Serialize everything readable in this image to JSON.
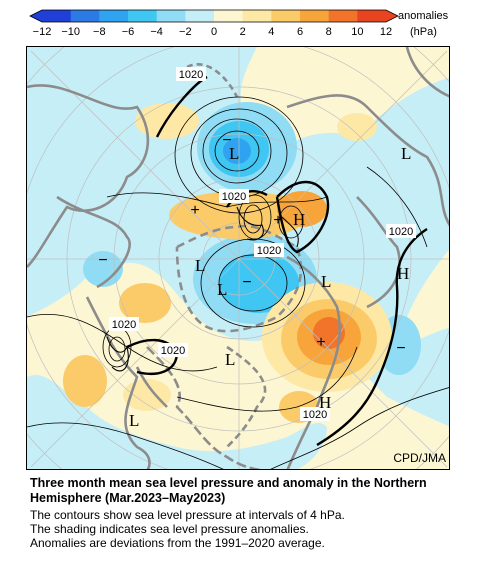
{
  "colorbar": {
    "ticks": [
      "−12",
      "−10",
      "−8",
      "−6",
      "−4",
      "−2",
      "0",
      "2",
      "4",
      "6",
      "8",
      "10",
      "12"
    ],
    "units_line1": "anomalies",
    "units_line2": "(hPa)",
    "colors": [
      "#1f3fd6",
      "#2b7ae6",
      "#2fa3f0",
      "#3fc6f3",
      "#8fdcf4",
      "#c6eef6",
      "#fdf6d2",
      "#fde8a6",
      "#fbcb6a",
      "#f7a53a",
      "#f2742a",
      "#e8441f"
    ]
  },
  "map": {
    "contour_labels": [
      "1020",
      "1020",
      "1020",
      "1020",
      "1020",
      "1020",
      "1020"
    ],
    "pressure_centers": [
      {
        "symbol": "L",
        "name": "low-center-aleutian"
      },
      {
        "symbol": "L",
        "name": "low-center-arctic-1"
      },
      {
        "symbol": "L",
        "name": "low-center-arctic-2"
      },
      {
        "symbol": "L",
        "name": "low-center-atlantic"
      },
      {
        "symbol": "L",
        "name": "low-center-europe"
      },
      {
        "symbol": "L",
        "name": "low-center-south"
      },
      {
        "symbol": "L",
        "name": "low-center-east"
      },
      {
        "symbol": "H",
        "name": "high-center-greenland"
      },
      {
        "symbol": "H",
        "name": "high-center-siberia"
      },
      {
        "symbol": "H",
        "name": "high-center-pacific"
      }
    ],
    "anomaly_markers": [
      "+",
      "+",
      "+",
      "−",
      "−",
      "−",
      "−"
    ]
  },
  "credit": "CPD/JMA",
  "caption": {
    "title": "Three month mean sea level pressure and anomaly in the Northern Hemisphere (Mar.2023–May2023)",
    "lines": [
      "The contours show sea level pressure at intervals of 4 hPa.",
      "The shading indicates sea level pressure anomalies.",
      "Anomalies are deviations from the 1991–2020 average."
    ]
  }
}
